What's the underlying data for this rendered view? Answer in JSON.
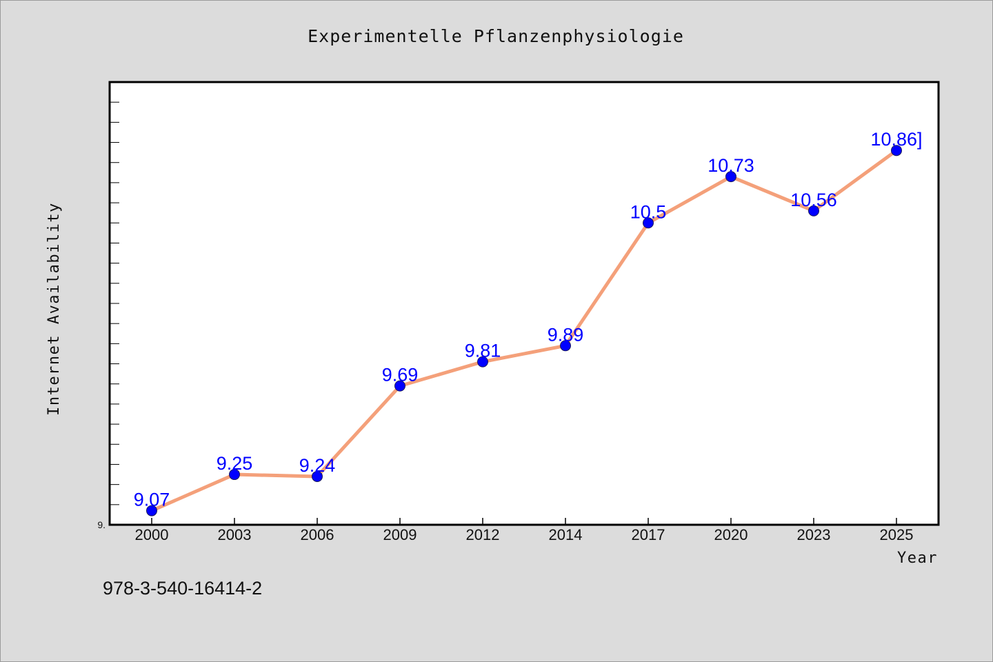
{
  "chart_data": {
    "type": "line",
    "title": "Experimentelle Pflanzenphysiologie",
    "xlabel": "Year",
    "ylabel": "Internet Availability",
    "categories": [
      "2000",
      "2003",
      "2006",
      "2009",
      "2012",
      "2014",
      "2017",
      "2020",
      "2023",
      "2025"
    ],
    "series": [
      {
        "values": [
          9.07,
          9.25,
          9.24,
          9.69,
          9.81,
          9.89,
          10.5,
          10.73,
          10.56,
          10.86
        ]
      }
    ],
    "data_labels": [
      "9.07",
      "9.25",
      "9.24",
      "9.69",
      "9.81",
      "9.89",
      "10.5",
      "10.73",
      "10.56",
      "10.86]"
    ],
    "ylim": [
      9.0,
      11.2
    ],
    "y_tick_label": "9.",
    "grid": false,
    "line_color": "#f4a07a",
    "marker_color": "#0000ff",
    "label_color": "#0000ff"
  },
  "footer_text": "978-3-540-16414-2"
}
